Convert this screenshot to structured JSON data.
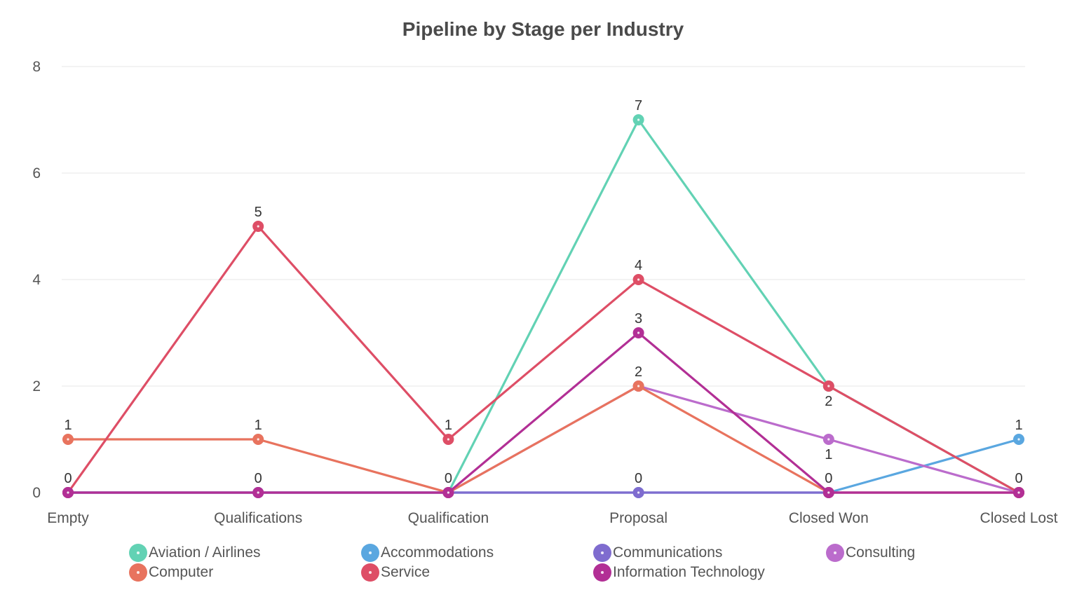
{
  "chart_data": {
    "type": "line",
    "title": "Pipeline by Stage per Industry",
    "xlabel": "",
    "ylabel": "",
    "categories": [
      "Empty",
      "Qualifications",
      "Qualification",
      "Proposal",
      "Closed Won",
      "Closed Lost"
    ],
    "ylim": [
      0,
      8
    ],
    "yticks": [
      "0",
      "2",
      "4",
      "6",
      "8"
    ],
    "grid": true,
    "legend": "bottom",
    "series": [
      {
        "name": "Aviation / Airlines",
        "color": "#62d2b4",
        "values": [
          0,
          0,
          0,
          7,
          2,
          0
        ],
        "labels": [
          "",
          "",
          "",
          "7",
          "",
          ""
        ]
      },
      {
        "name": "Accommodations",
        "color": "#5aa7e0",
        "values": [
          0,
          0,
          0,
          0,
          0,
          1
        ],
        "labels": [
          "",
          "",
          "",
          "0",
          "",
          "1"
        ]
      },
      {
        "name": "Communications",
        "color": "#7f6ccf",
        "values": [
          0,
          0,
          0,
          0,
          0,
          0
        ],
        "labels": [
          "",
          "",
          "",
          "",
          "",
          ""
        ]
      },
      {
        "name": "Consulting",
        "color": "#bb6ccc",
        "values": [
          0,
          0,
          0,
          2,
          1,
          0
        ],
        "labels": [
          "",
          "",
          "",
          "",
          "1",
          ""
        ]
      },
      {
        "name": "Computer",
        "color": "#e8735e",
        "values": [
          1,
          1,
          0,
          2,
          0,
          0
        ],
        "labels": [
          "1",
          "1",
          "",
          "2",
          "",
          ""
        ]
      },
      {
        "name": "Service",
        "color": "#de4e66",
        "values": [
          0,
          5,
          1,
          4,
          2,
          0
        ],
        "labels": [
          "",
          "5",
          "1",
          "4",
          "2",
          ""
        ]
      },
      {
        "name": "Information Technology",
        "color": "#b22f95",
        "values": [
          0,
          0,
          0,
          3,
          0,
          0
        ],
        "labels": [
          "0",
          "0",
          "0",
          "3",
          "0",
          "0"
        ]
      }
    ]
  }
}
